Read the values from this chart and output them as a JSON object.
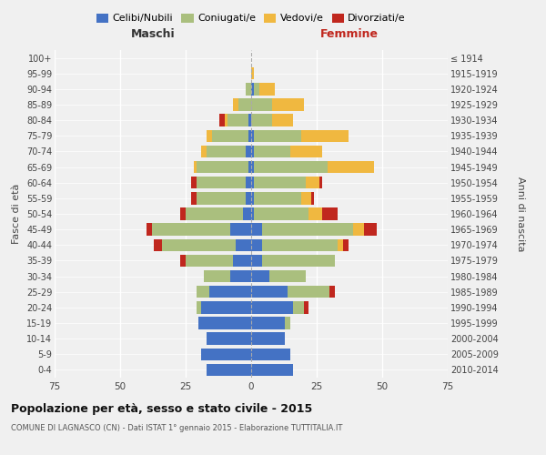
{
  "age_groups": [
    "0-4",
    "5-9",
    "10-14",
    "15-19",
    "20-24",
    "25-29",
    "30-34",
    "35-39",
    "40-44",
    "45-49",
    "50-54",
    "55-59",
    "60-64",
    "65-69",
    "70-74",
    "75-79",
    "80-84",
    "85-89",
    "90-94",
    "95-99",
    "100+"
  ],
  "birth_years": [
    "2010-2014",
    "2005-2009",
    "2000-2004",
    "1995-1999",
    "1990-1994",
    "1985-1989",
    "1980-1984",
    "1975-1979",
    "1970-1974",
    "1965-1969",
    "1960-1964",
    "1955-1959",
    "1950-1954",
    "1945-1949",
    "1940-1944",
    "1935-1939",
    "1930-1934",
    "1925-1929",
    "1920-1924",
    "1915-1919",
    "≤ 1914"
  ],
  "males": {
    "celibe": [
      17,
      19,
      17,
      20,
      19,
      16,
      8,
      7,
      6,
      8,
      3,
      2,
      2,
      1,
      2,
      1,
      1,
      0,
      0,
      0,
      0
    ],
    "coniugato": [
      0,
      0,
      0,
      0,
      2,
      5,
      10,
      18,
      28,
      30,
      22,
      19,
      19,
      20,
      15,
      14,
      8,
      5,
      2,
      0,
      0
    ],
    "vedovo": [
      0,
      0,
      0,
      0,
      0,
      0,
      0,
      0,
      0,
      0,
      0,
      0,
      0,
      1,
      2,
      2,
      1,
      2,
      0,
      0,
      0
    ],
    "divorziato": [
      0,
      0,
      0,
      0,
      0,
      0,
      0,
      2,
      3,
      2,
      2,
      2,
      2,
      0,
      0,
      0,
      2,
      0,
      0,
      0,
      0
    ]
  },
  "females": {
    "nubile": [
      16,
      15,
      13,
      13,
      16,
      14,
      7,
      4,
      4,
      4,
      1,
      1,
      1,
      1,
      1,
      1,
      0,
      0,
      1,
      0,
      0
    ],
    "coniugata": [
      0,
      0,
      0,
      2,
      4,
      16,
      14,
      28,
      29,
      35,
      21,
      18,
      20,
      28,
      14,
      18,
      8,
      8,
      2,
      0,
      0
    ],
    "vedova": [
      0,
      0,
      0,
      0,
      0,
      0,
      0,
      0,
      2,
      4,
      5,
      4,
      5,
      18,
      12,
      18,
      8,
      12,
      6,
      1,
      0
    ],
    "divorziata": [
      0,
      0,
      0,
      0,
      2,
      2,
      0,
      0,
      2,
      5,
      6,
      1,
      1,
      0,
      0,
      0,
      0,
      0,
      0,
      0,
      0
    ]
  },
  "colors": {
    "celibe": "#4472C4",
    "coniugato": "#AABF7E",
    "vedovo": "#F0B840",
    "divorziato": "#C0271E"
  },
  "title": "Popolazione per età, sesso e stato civile - 2015",
  "subtitle": "COMUNE DI LAGNASCO (CN) - Dati ISTAT 1° gennaio 2015 - Elaborazione TUTTITALIA.IT",
  "label_maschi": "Maschi",
  "label_femmine": "Femmine",
  "ylabel_left": "Fasce di età",
  "ylabel_right": "Anni di nascita",
  "xlim": 75,
  "background_color": "#f0f0f0",
  "legend_labels": [
    "Celibi/Nubili",
    "Coniugati/e",
    "Vedovi/e",
    "Divorziati/e"
  ]
}
